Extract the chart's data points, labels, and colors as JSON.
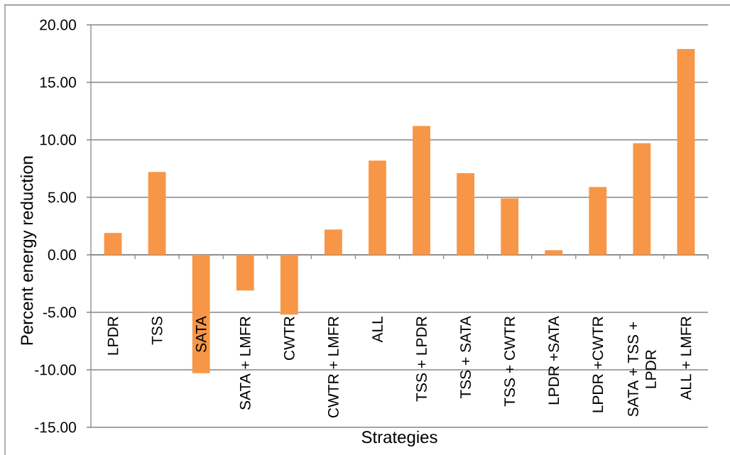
{
  "chart_data": {
    "type": "bar",
    "xlabel": "Strategies",
    "ylabel": "Percent energy reduction",
    "categories": [
      "LPDR",
      "TSS",
      "SATA",
      "SATA + LMFR",
      "CWTR",
      "CWTR + LMFR",
      "ALL",
      "TSS + LPDR",
      "TSS + SATA",
      "TSS + CWTR",
      "LPDR +SATA",
      "LPDR +CWTR",
      "SATA + TSS + LPDR",
      "ALL + LMFR"
    ],
    "values": [
      1.9,
      7.2,
      -10.3,
      -3.1,
      -5.2,
      2.2,
      8.2,
      11.2,
      7.1,
      4.9,
      0.4,
      5.9,
      9.7,
      17.9
    ],
    "color": "#f79646",
    "ylim": [
      -15,
      20
    ],
    "yticks": [
      {
        "value": -15,
        "label": "-15.00"
      },
      {
        "value": -10,
        "label": "-10.00"
      },
      {
        "value": -5,
        "label": "-5.00"
      },
      {
        "value": 0,
        "label": "0.00"
      },
      {
        "value": 5,
        "label": "5.00"
      },
      {
        "value": 10,
        "label": "10.00"
      },
      {
        "value": 15,
        "label": "15.00"
      },
      {
        "value": 20,
        "label": "20.00"
      }
    ],
    "grid": "y"
  }
}
